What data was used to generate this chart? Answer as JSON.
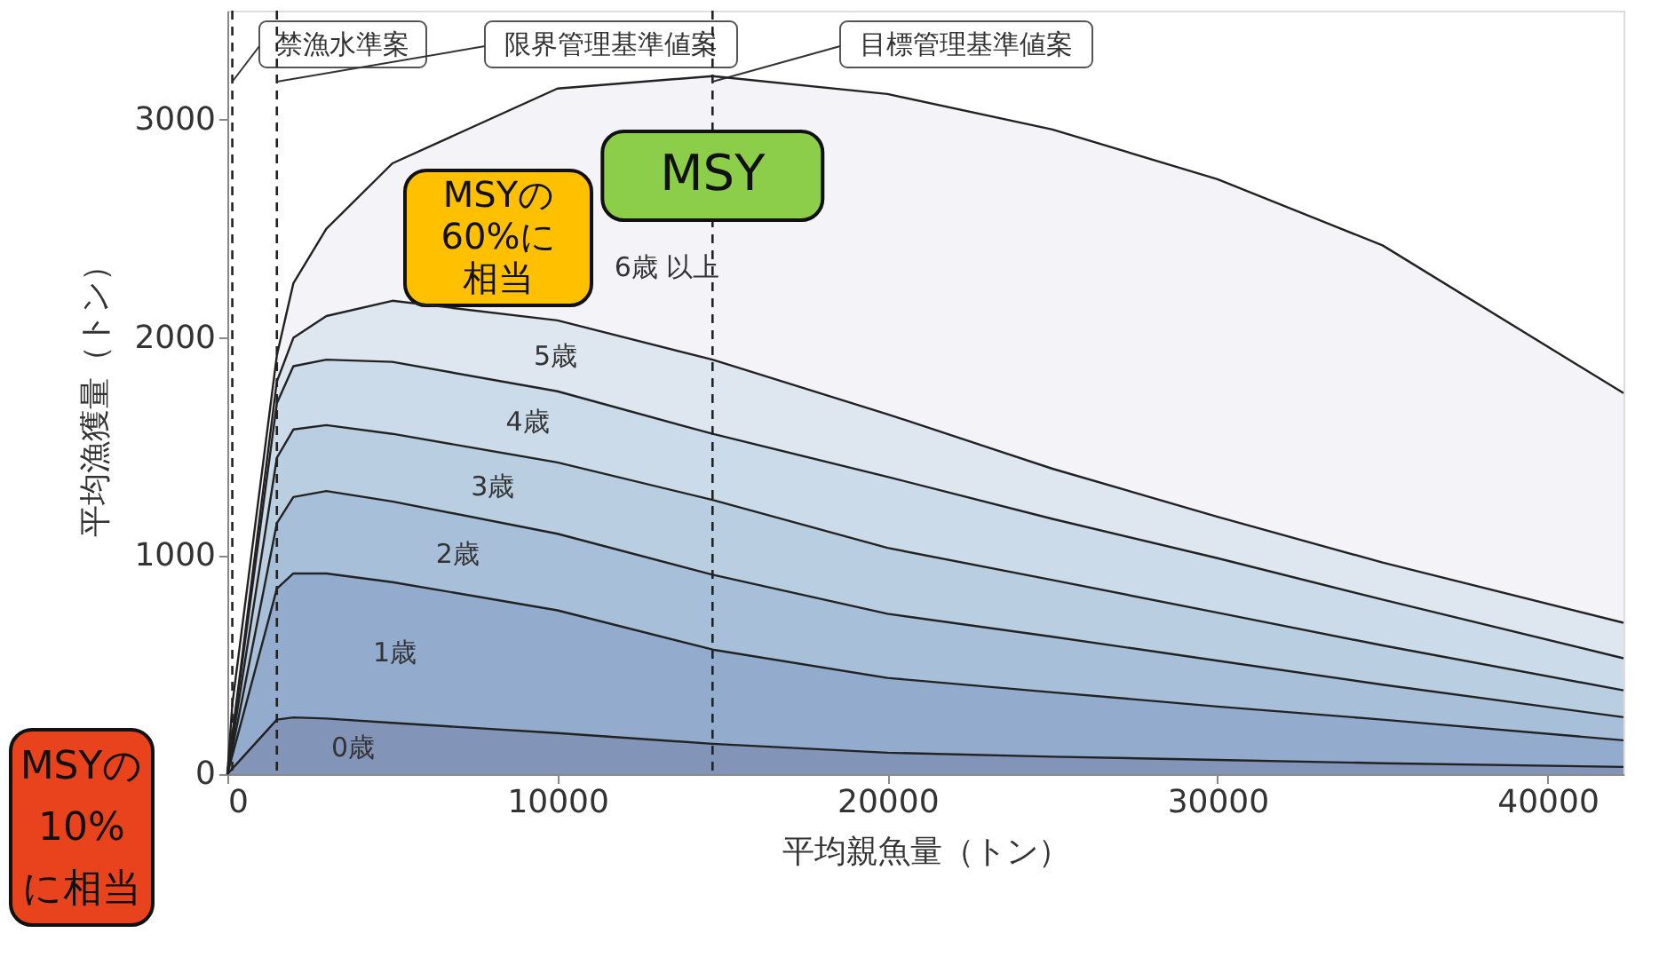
{
  "chart_data": {
    "type": "area",
    "stacked": true,
    "xlabel": "平均親魚量（トン）",
    "ylabel": "平均漁獲量（トン）",
    "x": [
      0,
      150,
      1500,
      2000,
      3000,
      5000,
      10000,
      14700,
      20000,
      25000,
      30000,
      35000,
      42300
    ],
    "series": [
      {
        "name": "0歳",
        "color": "#8294b8",
        "values": [
          0,
          25,
          250,
          260,
          255,
          235,
          188,
          139,
          98,
          80,
          65,
          50,
          33
        ]
      },
      {
        "name": "1歳",
        "color": "#93abcd",
        "values": [
          0,
          60,
          600,
          660,
          665,
          645,
          563,
          432,
          343,
          295,
          245,
          200,
          122
        ]
      },
      {
        "name": "2歳",
        "color": "#a8bfda",
        "values": [
          0,
          30,
          300,
          350,
          378,
          370,
          351,
          343,
          294,
          255,
          210,
          160,
          106
        ]
      },
      {
        "name": "3歳",
        "color": "#bacee2",
        "values": [
          0,
          30,
          300,
          310,
          302,
          310,
          327,
          343,
          302,
          260,
          220,
          180,
          123
        ]
      },
      {
        "name": "4歳",
        "color": "#ccdbe9",
        "values": [
          0,
          25,
          250,
          290,
          300,
          330,
          326,
          303,
          326,
          280,
          250,
          210,
          147
        ]
      },
      {
        "name": "5歳",
        "color": "#dee6f0",
        "values": [
          0,
          10,
          100,
          130,
          200,
          280,
          325,
          340,
          287,
          230,
          190,
          170,
          163
        ]
      },
      {
        "name": "6歳 以上",
        "color": "#f4f3f8",
        "values": [
          0,
          140,
          120,
          250,
          400,
          630,
          1063,
          1300,
          1468,
          1555,
          1547,
          1454,
          1053
        ]
      }
    ],
    "xlim": [
      0,
      42300
    ],
    "xticks": [
      0,
      10000,
      20000,
      30000,
      40000
    ],
    "ylim": [
      0,
      3500
    ],
    "yticks": [
      0,
      1000,
      2000,
      3000
    ],
    "ref_lines": [
      {
        "axis": "x",
        "value": 150,
        "label": "禁漁水準案",
        "line_style": "dashed"
      },
      {
        "axis": "x",
        "value": 1500,
        "label": "限界管理基準値案",
        "line_style": "dashed"
      },
      {
        "axis": "x",
        "value": 14700,
        "label": "目標管理基準値案",
        "line_style": "dashed"
      }
    ],
    "annotations": [
      "MSY",
      "MSYの60%に相当",
      "MSYの10%に相当"
    ],
    "grid": false
  }
}
